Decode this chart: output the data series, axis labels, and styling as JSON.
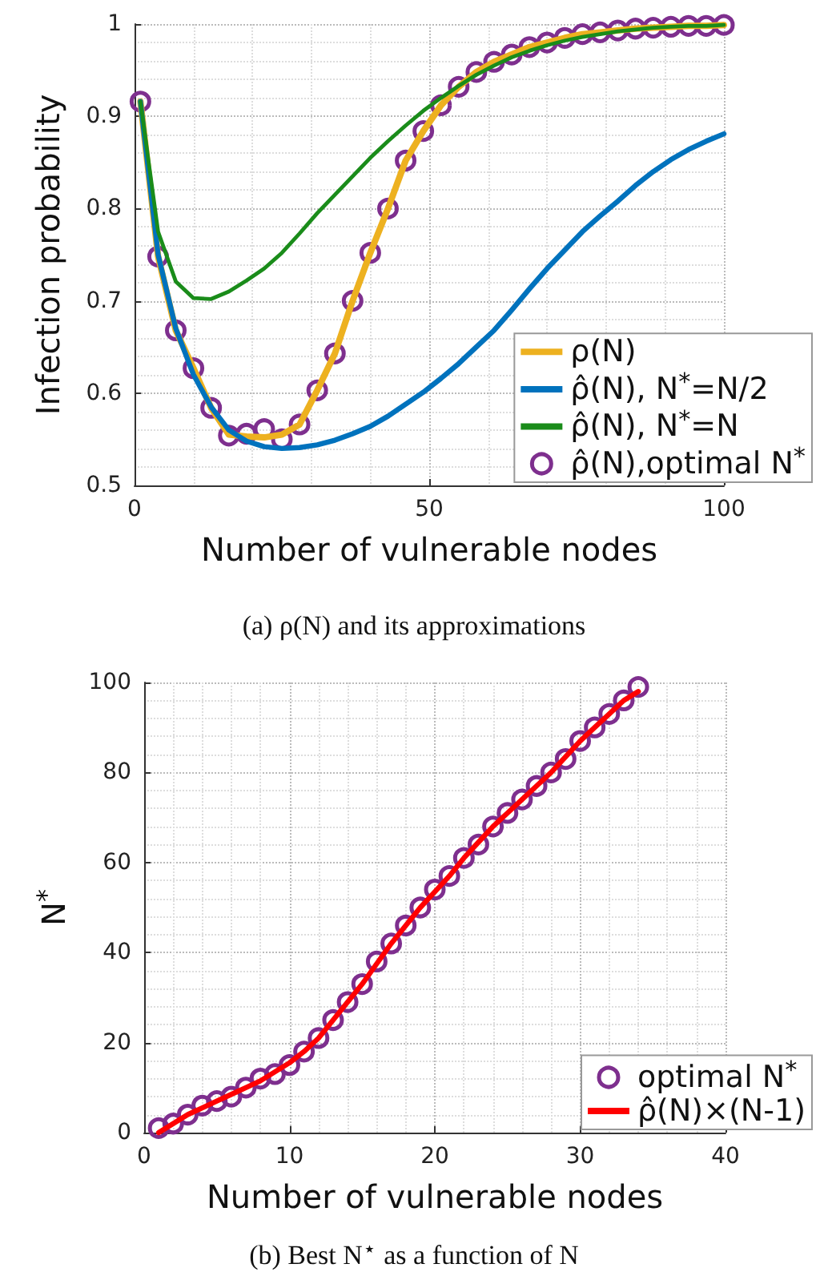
{
  "chart_data": [
    {
      "type": "line",
      "xlabel": "Number of vulnerable nodes",
      "ylabel": "Infection probability",
      "annotations": [
        "(a) ρ(N) and its approximations"
      ],
      "x": [
        1,
        4,
        7,
        10,
        13,
        16,
        19,
        22,
        25,
        28,
        31,
        34,
        37,
        40,
        43,
        46,
        49,
        52,
        55,
        58,
        61,
        64,
        67,
        70,
        73,
        76,
        79,
        82,
        85,
        88,
        91,
        94,
        97,
        100
      ],
      "xlim": [
        0,
        100
      ],
      "xticks": [
        0,
        50,
        100
      ],
      "ylim": [
        0.5,
        1
      ],
      "yticks": [
        0.5,
        0.6,
        0.7,
        0.8,
        0.9,
        1
      ],
      "grid": true,
      "legend": "bottom right",
      "series": [
        {
          "name": "ρ(N)",
          "color": "#edb120",
          "values": [
            0.916,
            0.748,
            0.668,
            0.627,
            0.584,
            0.555,
            0.553,
            0.552,
            0.555,
            0.566,
            0.603,
            0.643,
            0.7,
            0.752,
            0.8,
            0.852,
            0.884,
            0.912,
            0.932,
            0.948,
            0.959,
            0.967,
            0.975,
            0.98,
            0.985,
            0.989,
            0.991,
            0.993,
            0.995,
            0.996,
            0.997,
            0.998,
            0.998,
            0.999
          ]
        },
        {
          "name": "ρ̂(N), N$^{*}$=N/2",
          "color": "#0072bd",
          "values": [
            0.916,
            0.75,
            0.67,
            0.62,
            0.585,
            0.56,
            0.548,
            0.542,
            0.54,
            0.541,
            0.544,
            0.549,
            0.556,
            0.564,
            0.575,
            0.588,
            0.601,
            0.616,
            0.632,
            0.65,
            0.668,
            0.69,
            0.713,
            0.735,
            0.755,
            0.775,
            0.792,
            0.808,
            0.825,
            0.84,
            0.853,
            0.864,
            0.873,
            0.881
          ]
        },
        {
          "name": "ρ̂(N), N$^{*}$=N",
          "color": "#1a8c1a",
          "values": [
            0.916,
            0.775,
            0.721,
            0.703,
            0.702,
            0.71,
            0.722,
            0.735,
            0.752,
            0.773,
            0.795,
            0.815,
            0.835,
            0.855,
            0.873,
            0.89,
            0.906,
            0.92,
            0.933,
            0.945,
            0.955,
            0.964,
            0.971,
            0.977,
            0.982,
            0.986,
            0.989,
            0.992,
            0.994,
            0.996,
            0.997,
            0.998,
            0.998,
            0.999
          ]
        },
        {
          "name": "ρ̂(N),optimal N$^{*}$",
          "type": "scatter",
          "marker": "circle",
          "color": "#7e2f8e",
          "values": [
            0.916,
            0.748,
            0.668,
            0.627,
            0.584,
            0.554,
            0.556,
            0.561,
            0.55,
            0.566,
            0.603,
            0.643,
            0.7,
            0.752,
            0.8,
            0.852,
            0.884,
            0.912,
            0.932,
            0.948,
            0.959,
            0.967,
            0.975,
            0.98,
            0.985,
            0.989,
            0.991,
            0.993,
            0.995,
            0.996,
            0.997,
            0.998,
            0.998,
            0.999
          ]
        }
      ]
    },
    {
      "type": "line",
      "xlabel": "Number of vulnerable nodes",
      "ylabel": "N$^{*}$",
      "annotations": [
        "(b) Best N$^{⋆}$ as a function of N"
      ],
      "x": [
        1,
        2,
        3,
        4,
        5,
        6,
        7,
        8,
        9,
        10,
        11,
        12,
        13,
        14,
        15,
        16,
        17,
        18,
        19,
        20,
        21,
        22,
        23,
        24,
        25,
        26,
        27,
        28,
        29,
        30,
        31,
        32,
        33,
        34
      ],
      "xlim": [
        0,
        40
      ],
      "xticks": [
        0,
        10,
        20,
        30,
        40
      ],
      "ylim": [
        0,
        100
      ],
      "yticks": [
        0,
        20,
        40,
        60,
        80,
        100
      ],
      "grid": true,
      "legend": "bottom right",
      "series": [
        {
          "name": "optimal N$^{*}$",
          "type": "scatter",
          "marker": "circle",
          "color": "#7e2f8e",
          "values": [
            1,
            2,
            4,
            6,
            7,
            8,
            10,
            12,
            13,
            15,
            18,
            21,
            25,
            29,
            33,
            38,
            42,
            46,
            50,
            54,
            57,
            61,
            64,
            68,
            71,
            74,
            77,
            80,
            83,
            87,
            90,
            93,
            96,
            99
          ]
        },
        {
          "name": "ρ̂(N)×(N-1)",
          "color": "#ff0000",
          "values": [
            0,
            2,
            4,
            5.5,
            7,
            8.5,
            10,
            11.5,
            13.5,
            15.5,
            18,
            21,
            25,
            29,
            33,
            37.5,
            42,
            46,
            50,
            53.5,
            57,
            61,
            64.5,
            68,
            71,
            74,
            77,
            80,
            83.5,
            87,
            90,
            93,
            96,
            98
          ]
        }
      ]
    }
  ]
}
